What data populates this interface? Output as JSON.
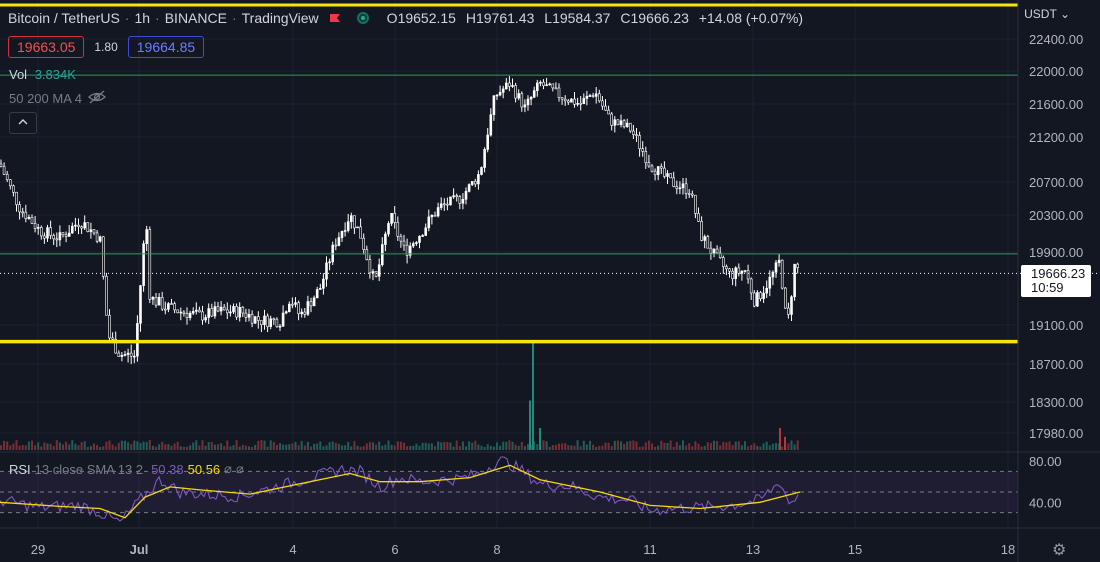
{
  "header": {
    "symbol": "Bitcoin / TetherUS",
    "interval": "1h",
    "exchange": "BINANCE",
    "source": "TradingView",
    "ohlc": {
      "o_label": "O",
      "o": "19652.15",
      "h_label": "H",
      "h": "19761.43",
      "l_label": "L",
      "l": "19584.37",
      "c_label": "C",
      "c": "19666.23",
      "change": "+14.08 (+0.07%)"
    }
  },
  "trade": {
    "sell_price": "19663.05",
    "spread": "1.80",
    "buy_price": "19664.85"
  },
  "volume": {
    "label": "Vol",
    "value": "3.834K"
  },
  "ma_indicator": {
    "label": "50 200 MA 4"
  },
  "rsi_indicator": {
    "name": "RSI",
    "params": "13 close SMA 13 2",
    "rsi_value": "50.38",
    "sma_value": "50.56"
  },
  "price_axis": {
    "currency": "USDT",
    "ticks": [
      "22400.00",
      "22000.00",
      "21600.00",
      "21200.00",
      "20700.00",
      "20300.00",
      "19900.00",
      "19100.00",
      "18700.00",
      "18300.00",
      "17980.00"
    ],
    "rsi_ticks": [
      "80.00",
      "40.00"
    ],
    "last_price": "19666.23",
    "countdown": "10:59"
  },
  "time_axis": {
    "labels": [
      "29",
      "Jul",
      "4",
      "6",
      "8",
      "11",
      "13",
      "15",
      "18"
    ]
  },
  "colors": {
    "background": "#131722",
    "candle": "#ffffff",
    "support_line": "#f5e50a",
    "horizontal_line": "#22a05a",
    "volume_up": "#26a69a",
    "volume_down": "#ef5350",
    "rsi_line": "#7e57c2",
    "rsi_sma": "#f5d90a"
  },
  "chart_data": {
    "type": "candlestick",
    "symbol": "BTCUSDT",
    "interval": "1h",
    "ylim": [
      17700,
      22650
    ],
    "y_ticks": [
      17980,
      18300,
      18700,
      19100,
      19900,
      20300,
      20700,
      21200,
      21600,
      22000,
      22400
    ],
    "x_labels": [
      "29",
      "Jul",
      "4",
      "6",
      "8",
      "11",
      "13",
      "15",
      "18"
    ],
    "horizontal_lines": [
      {
        "price": 18930,
        "color": "#f5e50a",
        "style": "solid-thick"
      },
      {
        "price": 21950,
        "color": "#22a05a",
        "style": "solid"
      },
      {
        "price": 19880,
        "color": "#22a05a",
        "style": "solid"
      },
      {
        "price": 19666.23,
        "color": "#ffffff",
        "style": "dotted"
      }
    ],
    "close_path": [
      [
        0,
        20900
      ],
      [
        20,
        20380
      ],
      [
        40,
        20130
      ],
      [
        60,
        20050
      ],
      [
        80,
        20240
      ],
      [
        100,
        20050
      ],
      [
        108,
        19000
      ],
      [
        120,
        18800
      ],
      [
        135,
        18780
      ],
      [
        146,
        20300
      ],
      [
        150,
        19400
      ],
      [
        165,
        19300
      ],
      [
        180,
        19250
      ],
      [
        200,
        19200
      ],
      [
        220,
        19250
      ],
      [
        240,
        19250
      ],
      [
        260,
        19150
      ],
      [
        280,
        19150
      ],
      [
        290,
        19400
      ],
      [
        300,
        19200
      ],
      [
        320,
        19500
      ],
      [
        335,
        20000
      ],
      [
        350,
        20300
      ],
      [
        360,
        20100
      ],
      [
        375,
        19550
      ],
      [
        390,
        20300
      ],
      [
        405,
        19900
      ],
      [
        420,
        20100
      ],
      [
        440,
        20400
      ],
      [
        460,
        20500
      ],
      [
        480,
        20800
      ],
      [
        495,
        21700
      ],
      [
        510,
        21850
      ],
      [
        525,
        21550
      ],
      [
        540,
        21850
      ],
      [
        560,
        21700
      ],
      [
        580,
        21600
      ],
      [
        595,
        21750
      ],
      [
        610,
        21400
      ],
      [
        630,
        21300
      ],
      [
        650,
        20900
      ],
      [
        670,
        20700
      ],
      [
        690,
        20600
      ],
      [
        700,
        20100
      ],
      [
        715,
        19850
      ],
      [
        730,
        19650
      ],
      [
        745,
        19700
      ],
      [
        755,
        19350
      ],
      [
        770,
        19600
      ],
      [
        780,
        19800
      ],
      [
        787,
        19050
      ],
      [
        795,
        19780
      ],
      [
        800,
        19666
      ]
    ],
    "volume": [
      {
        "x": 533,
        "value": 100
      },
      {
        "x": 530,
        "value": 45
      },
      {
        "x": 540,
        "value": 20
      },
      {
        "x": 780,
        "value": 20
      },
      {
        "x": 785,
        "value": 12
      }
    ],
    "rsi": {
      "ylim": [
        15,
        85
      ],
      "bands": [
        70,
        50,
        30
      ],
      "path": [
        [
          0,
          42
        ],
        [
          40,
          35
        ],
        [
          80,
          37
        ],
        [
          100,
          30
        ],
        [
          120,
          20
        ],
        [
          140,
          42
        ],
        [
          160,
          62
        ],
        [
          180,
          50
        ],
        [
          200,
          48
        ],
        [
          240,
          46
        ],
        [
          280,
          56
        ],
        [
          320,
          66
        ],
        [
          340,
          72
        ],
        [
          360,
          70
        ],
        [
          380,
          55
        ],
        [
          400,
          64
        ],
        [
          420,
          60
        ],
        [
          460,
          63
        ],
        [
          480,
          68
        ],
        [
          500,
          82
        ],
        [
          520,
          72
        ],
        [
          540,
          58
        ],
        [
          570,
          56
        ],
        [
          600,
          45
        ],
        [
          630,
          42
        ],
        [
          650,
          32
        ],
        [
          670,
          34
        ],
        [
          700,
          35
        ],
        [
          730,
          37
        ],
        [
          760,
          42
        ],
        [
          780,
          60
        ],
        [
          790,
          38
        ],
        [
          800,
          50
        ]
      ],
      "sma_path": [
        [
          0,
          40
        ],
        [
          60,
          36
        ],
        [
          100,
          34
        ],
        [
          125,
          25
        ],
        [
          145,
          45
        ],
        [
          170,
          55
        ],
        [
          200,
          52
        ],
        [
          250,
          48
        ],
        [
          300,
          58
        ],
        [
          350,
          68
        ],
        [
          380,
          60
        ],
        [
          420,
          60
        ],
        [
          470,
          64
        ],
        [
          510,
          76
        ],
        [
          540,
          62
        ],
        [
          600,
          50
        ],
        [
          650,
          37
        ],
        [
          700,
          34
        ],
        [
          760,
          40
        ],
        [
          800,
          50
        ]
      ]
    }
  }
}
